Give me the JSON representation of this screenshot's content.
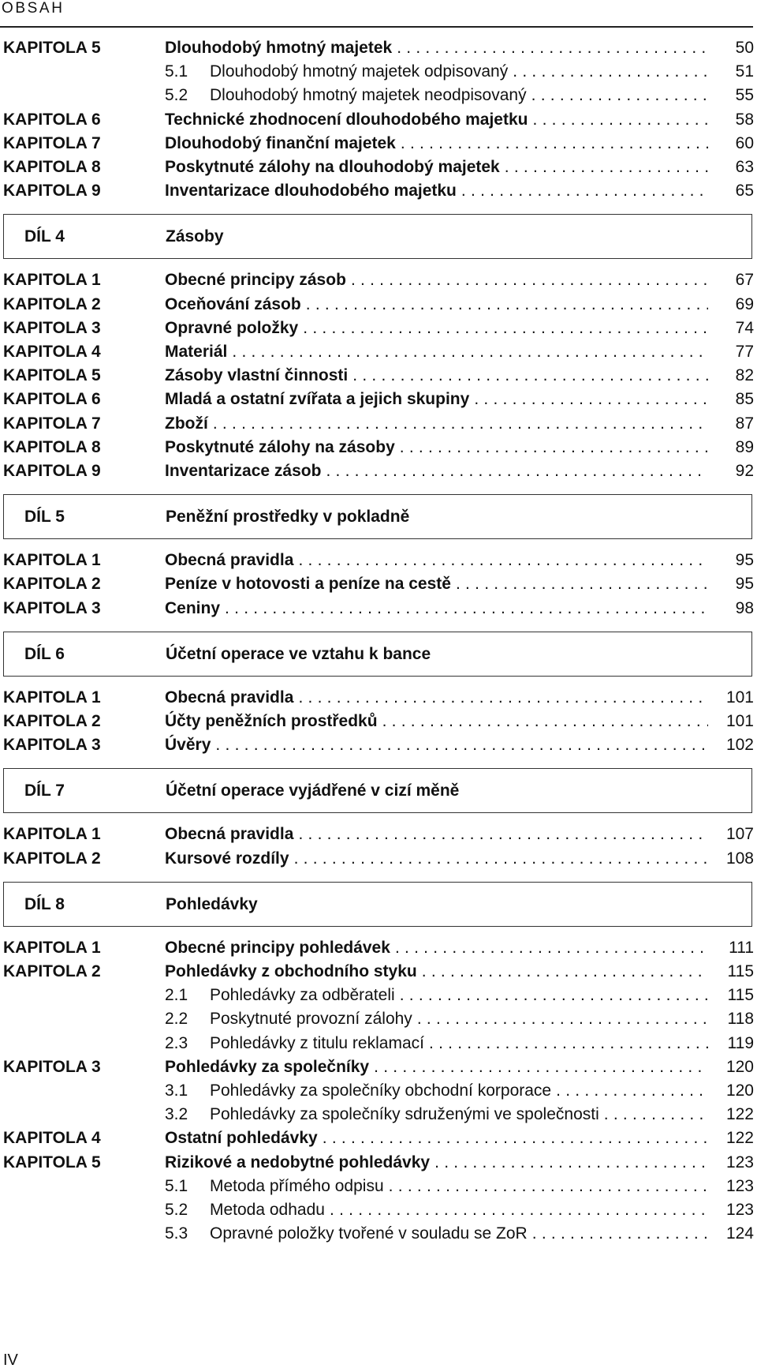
{
  "header": {
    "title": "OBSAH"
  },
  "sections": [
    {
      "rows": [
        {
          "label": "KAPITOLA 5",
          "title": "Dlouhodobý hmotný majetek",
          "page": "50"
        },
        {
          "num": "5.1",
          "title": "Dlouhodobý hmotný majetek odpisovaný",
          "page": "51"
        },
        {
          "num": "5.2",
          "title": "Dlouhodobý hmotný majetek neodpisovaný",
          "page": "55"
        },
        {
          "label": "KAPITOLA 6",
          "title": "Technické zhodnocení dlouhodobého majetku",
          "page": "58"
        },
        {
          "label": "KAPITOLA 7",
          "title": "Dlouhodobý finanční majetek",
          "page": "60"
        },
        {
          "label": "KAPITOLA 8",
          "title": "Poskytnuté zálohy na dlouhodobý majetek",
          "page": "63"
        },
        {
          "label": "KAPITOLA 9",
          "title": "Inventarizace dlouhodobého majetku",
          "page": "65"
        }
      ]
    },
    {
      "part_label": "DÍL 4",
      "part_title": "Zásoby",
      "rows": [
        {
          "label": "KAPITOLA 1",
          "title": "Obecné principy zásob",
          "page": "67"
        },
        {
          "label": "KAPITOLA 2",
          "title": "Oceňování zásob",
          "page": "69"
        },
        {
          "label": "KAPITOLA 3",
          "title": "Opravné položky",
          "page": "74"
        },
        {
          "label": "KAPITOLA 4",
          "title": "Materiál",
          "page": "77"
        },
        {
          "label": "KAPITOLA 5",
          "title": "Zásoby vlastní činnosti",
          "page": "82"
        },
        {
          "label": "KAPITOLA 6",
          "title": "Mladá a ostatní zvířata a jejich skupiny",
          "page": "85"
        },
        {
          "label": "KAPITOLA 7",
          "title": "Zboží",
          "page": "87"
        },
        {
          "label": "KAPITOLA 8",
          "title": "Poskytnuté zálohy na zásoby",
          "page": "89"
        },
        {
          "label": "KAPITOLA 9",
          "title": "Inventarizace zásob",
          "page": "92"
        }
      ]
    },
    {
      "part_label": "DÍL 5",
      "part_title": "Peněžní prostředky v pokladně",
      "rows": [
        {
          "label": "KAPITOLA 1",
          "title": "Obecná pravidla",
          "page": "95"
        },
        {
          "label": "KAPITOLA 2",
          "title": "Peníze v hotovosti a peníze na cestě",
          "page": "95"
        },
        {
          "label": "KAPITOLA 3",
          "title": "Ceniny",
          "page": "98"
        }
      ]
    },
    {
      "part_label": "DÍL 6",
      "part_title": "Účetní operace ve vztahu k bance",
      "rows": [
        {
          "label": "KAPITOLA 1",
          "title": "Obecná pravidla",
          "page": "101"
        },
        {
          "label": "KAPITOLA 2",
          "title": "Účty peněžních prostředků",
          "page": "101"
        },
        {
          "label": "KAPITOLA 3",
          "title": "Úvěry",
          "page": "102"
        }
      ]
    },
    {
      "part_label": "DÍL 7",
      "part_title": "Účetní operace vyjádřené v cizí měně",
      "rows": [
        {
          "label": "KAPITOLA 1",
          "title": "Obecná pravidla",
          "page": "107"
        },
        {
          "label": "KAPITOLA 2",
          "title": "Kursové rozdíly",
          "page": "108"
        }
      ]
    },
    {
      "part_label": "DÍL 8",
      "part_title": "Pohledávky",
      "rows": [
        {
          "label": "KAPITOLA 1",
          "title": "Obecné principy pohledávek",
          "page": "111"
        },
        {
          "label": "KAPITOLA 2",
          "title": "Pohledávky z obchodního styku",
          "page": "115"
        },
        {
          "num": "2.1",
          "title": "Pohledávky za odběrateli",
          "page": "115"
        },
        {
          "num": "2.2",
          "title": "Poskytnuté provozní zálohy",
          "page": "118"
        },
        {
          "num": "2.3",
          "title": "Pohledávky z titulu reklamací",
          "page": "119"
        },
        {
          "label": "KAPITOLA 3",
          "title": "Pohledávky za společníky",
          "page": "120"
        },
        {
          "num": "3.1",
          "title": "Pohledávky za společníky obchodní korporace",
          "page": "120"
        },
        {
          "num": "3.2",
          "title": "Pohledávky za společníky sdruženými ve společnosti",
          "page": "122"
        },
        {
          "label": "KAPITOLA 4",
          "title": "Ostatní pohledávky",
          "page": "122"
        },
        {
          "label": "KAPITOLA 5",
          "title": "Rizikové a nedobytné pohledávky",
          "page": "123"
        },
        {
          "num": "5.1",
          "title": "Metoda přímého odpisu",
          "page": "123"
        },
        {
          "num": "5.2",
          "title": "Metoda odhadu",
          "page": "123"
        },
        {
          "num": "5.3",
          "title": "Opravné položky tvořené v souladu se ZoR",
          "page": "124"
        }
      ]
    }
  ],
  "footer": {
    "page_number": "IV"
  }
}
